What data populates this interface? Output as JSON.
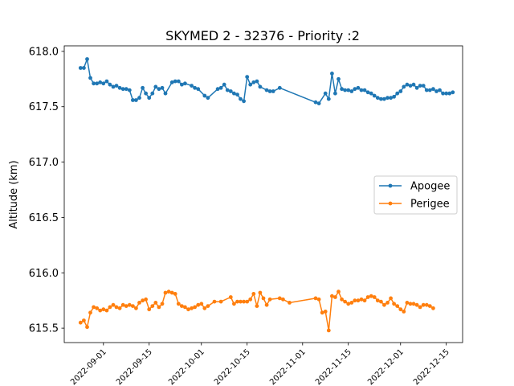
{
  "chart_data": {
    "type": "line",
    "title": "SKYMED 2 - 32376 - Priority :2",
    "xlabel": "",
    "ylabel": "Altitude (km)",
    "xlim": [
      "2022-08-20",
      "2022-12-20"
    ],
    "ylim": [
      615.37,
      618.05
    ],
    "yticks": [
      615.5,
      616.0,
      616.5,
      617.0,
      617.5,
      618.0
    ],
    "ytick_labels": [
      "615.5",
      "616.0",
      "616.5",
      "617.0",
      "617.5",
      "618.0"
    ],
    "xticks": [
      "2022-09-01",
      "2022-09-15",
      "2022-10-01",
      "2022-10-15",
      "2022-11-01",
      "2022-11-15",
      "2022-12-01",
      "2022-12-15"
    ],
    "xtick_labels": [
      "2022-09-01",
      "2022-09-15",
      "2022-10-01",
      "2022-10-15",
      "2022-11-01",
      "2022-11-15",
      "2022-12-01",
      "2022-12-15"
    ],
    "legend": {
      "placement": "center-right"
    },
    "grid": false,
    "series": [
      {
        "name": "Apogee",
        "color": "#1f77b4",
        "points": [
          [
            "2022-08-25",
            617.85
          ],
          [
            "2022-08-26",
            617.85
          ],
          [
            "2022-08-27",
            617.93
          ],
          [
            "2022-08-28",
            617.76
          ],
          [
            "2022-08-29",
            617.71
          ],
          [
            "2022-08-30",
            617.71
          ],
          [
            "2022-08-31",
            617.72
          ],
          [
            "2022-09-01",
            617.71
          ],
          [
            "2022-09-02",
            617.73
          ],
          [
            "2022-09-03",
            617.7
          ],
          [
            "2022-09-04",
            617.68
          ],
          [
            "2022-09-05",
            617.69
          ],
          [
            "2022-09-06",
            617.67
          ],
          [
            "2022-09-07",
            617.66
          ],
          [
            "2022-09-08",
            617.66
          ],
          [
            "2022-09-09",
            617.65
          ],
          [
            "2022-09-10",
            617.56
          ],
          [
            "2022-09-11",
            617.56
          ],
          [
            "2022-09-12",
            617.58
          ],
          [
            "2022-09-13",
            617.67
          ],
          [
            "2022-09-14",
            617.62
          ],
          [
            "2022-09-15",
            617.58
          ],
          [
            "2022-09-16",
            617.62
          ],
          [
            "2022-09-17",
            617.68
          ],
          [
            "2022-09-18",
            617.66
          ],
          [
            "2022-09-19",
            617.67
          ],
          [
            "2022-09-20",
            617.62
          ],
          [
            "2022-09-22",
            617.72
          ],
          [
            "2022-09-23",
            617.73
          ],
          [
            "2022-09-24",
            617.73
          ],
          [
            "2022-09-25",
            617.7
          ],
          [
            "2022-09-26",
            617.71
          ],
          [
            "2022-09-28",
            617.69
          ],
          [
            "2022-09-29",
            617.67
          ],
          [
            "2022-09-30",
            617.66
          ],
          [
            "2022-10-02",
            617.6
          ],
          [
            "2022-10-03",
            617.58
          ],
          [
            "2022-10-06",
            617.66
          ],
          [
            "2022-10-07",
            617.67
          ],
          [
            "2022-10-08",
            617.7
          ],
          [
            "2022-10-09",
            617.65
          ],
          [
            "2022-10-10",
            617.64
          ],
          [
            "2022-10-11",
            617.62
          ],
          [
            "2022-10-12",
            617.61
          ],
          [
            "2022-10-13",
            617.57
          ],
          [
            "2022-10-14",
            617.55
          ],
          [
            "2022-10-15",
            617.77
          ],
          [
            "2022-10-16",
            617.7
          ],
          [
            "2022-10-17",
            617.72
          ],
          [
            "2022-10-18",
            617.73
          ],
          [
            "2022-10-19",
            617.68
          ],
          [
            "2022-10-21",
            617.65
          ],
          [
            "2022-10-22",
            617.64
          ],
          [
            "2022-10-23",
            617.64
          ],
          [
            "2022-10-25",
            617.67
          ],
          [
            "2022-11-05",
            617.54
          ],
          [
            "2022-11-06",
            617.53
          ],
          [
            "2022-11-08",
            617.62
          ],
          [
            "2022-11-09",
            617.57
          ],
          [
            "2022-11-10",
            617.8
          ],
          [
            "2022-11-11",
            617.62
          ],
          [
            "2022-11-12",
            617.75
          ],
          [
            "2022-11-13",
            617.66
          ],
          [
            "2022-11-14",
            617.65
          ],
          [
            "2022-11-15",
            617.65
          ],
          [
            "2022-11-16",
            617.64
          ],
          [
            "2022-11-17",
            617.66
          ],
          [
            "2022-11-18",
            617.67
          ],
          [
            "2022-11-19",
            617.65
          ],
          [
            "2022-11-20",
            617.65
          ],
          [
            "2022-11-21",
            617.63
          ],
          [
            "2022-11-22",
            617.62
          ],
          [
            "2022-11-23",
            617.6
          ],
          [
            "2022-11-24",
            617.58
          ],
          [
            "2022-11-25",
            617.57
          ],
          [
            "2022-11-26",
            617.57
          ],
          [
            "2022-11-27",
            617.58
          ],
          [
            "2022-11-28",
            617.58
          ],
          [
            "2022-11-29",
            617.59
          ],
          [
            "2022-11-30",
            617.62
          ],
          [
            "2022-12-01",
            617.64
          ],
          [
            "2022-12-02",
            617.68
          ],
          [
            "2022-12-03",
            617.7
          ],
          [
            "2022-12-04",
            617.69
          ],
          [
            "2022-12-05",
            617.7
          ],
          [
            "2022-12-06",
            617.67
          ],
          [
            "2022-12-07",
            617.69
          ],
          [
            "2022-12-08",
            617.69
          ],
          [
            "2022-12-09",
            617.65
          ],
          [
            "2022-12-10",
            617.65
          ],
          [
            "2022-12-11",
            617.66
          ],
          [
            "2022-12-12",
            617.64
          ],
          [
            "2022-12-13",
            617.65
          ],
          [
            "2022-12-14",
            617.62
          ],
          [
            "2022-12-15",
            617.62
          ],
          [
            "2022-12-16",
            617.62
          ],
          [
            "2022-12-17",
            617.63
          ]
        ]
      },
      {
        "name": "Perigee",
        "color": "#ff7f0e",
        "points": [
          [
            "2022-08-25",
            615.55
          ],
          [
            "2022-08-26",
            615.57
          ],
          [
            "2022-08-27",
            615.51
          ],
          [
            "2022-08-28",
            615.64
          ],
          [
            "2022-08-29",
            615.69
          ],
          [
            "2022-08-30",
            615.68
          ],
          [
            "2022-08-31",
            615.66
          ],
          [
            "2022-09-01",
            615.67
          ],
          [
            "2022-09-02",
            615.66
          ],
          [
            "2022-09-03",
            615.69
          ],
          [
            "2022-09-04",
            615.71
          ],
          [
            "2022-09-05",
            615.69
          ],
          [
            "2022-09-06",
            615.68
          ],
          [
            "2022-09-07",
            615.71
          ],
          [
            "2022-09-08",
            615.7
          ],
          [
            "2022-09-09",
            615.71
          ],
          [
            "2022-09-10",
            615.7
          ],
          [
            "2022-09-11",
            615.68
          ],
          [
            "2022-09-12",
            615.73
          ],
          [
            "2022-09-13",
            615.75
          ],
          [
            "2022-09-14",
            615.76
          ],
          [
            "2022-09-15",
            615.67
          ],
          [
            "2022-09-16",
            615.7
          ],
          [
            "2022-09-17",
            615.73
          ],
          [
            "2022-09-18",
            615.69
          ],
          [
            "2022-09-19",
            615.72
          ],
          [
            "2022-09-20",
            615.82
          ],
          [
            "2022-09-21",
            615.83
          ],
          [
            "2022-09-22",
            615.82
          ],
          [
            "2022-09-23",
            615.81
          ],
          [
            "2022-09-24",
            615.72
          ],
          [
            "2022-09-25",
            615.7
          ],
          [
            "2022-09-26",
            615.69
          ],
          [
            "2022-09-27",
            615.67
          ],
          [
            "2022-09-28",
            615.68
          ],
          [
            "2022-09-29",
            615.69
          ],
          [
            "2022-09-30",
            615.71
          ],
          [
            "2022-10-01",
            615.72
          ],
          [
            "2022-10-02",
            615.68
          ],
          [
            "2022-10-03",
            615.7
          ],
          [
            "2022-10-05",
            615.74
          ],
          [
            "2022-10-07",
            615.74
          ],
          [
            "2022-10-10",
            615.78
          ],
          [
            "2022-10-11",
            615.72
          ],
          [
            "2022-10-12",
            615.74
          ],
          [
            "2022-10-13",
            615.74
          ],
          [
            "2022-10-14",
            615.74
          ],
          [
            "2022-10-15",
            615.74
          ],
          [
            "2022-10-16",
            615.76
          ],
          [
            "2022-10-17",
            615.81
          ],
          [
            "2022-10-18",
            615.7
          ],
          [
            "2022-10-19",
            615.82
          ],
          [
            "2022-10-20",
            615.77
          ],
          [
            "2022-10-21",
            615.71
          ],
          [
            "2022-10-22",
            615.76
          ],
          [
            "2022-10-25",
            615.77
          ],
          [
            "2022-10-26",
            615.76
          ],
          [
            "2022-10-28",
            615.73
          ],
          [
            "2022-11-05",
            615.77
          ],
          [
            "2022-11-06",
            615.76
          ],
          [
            "2022-11-07",
            615.64
          ],
          [
            "2022-11-08",
            615.65
          ],
          [
            "2022-11-09",
            615.48
          ],
          [
            "2022-11-10",
            615.79
          ],
          [
            "2022-11-11",
            615.78
          ],
          [
            "2022-11-12",
            615.83
          ],
          [
            "2022-11-13",
            615.76
          ],
          [
            "2022-11-14",
            615.74
          ],
          [
            "2022-11-15",
            615.72
          ],
          [
            "2022-11-16",
            615.73
          ],
          [
            "2022-11-17",
            615.75
          ],
          [
            "2022-11-18",
            615.75
          ],
          [
            "2022-11-19",
            615.76
          ],
          [
            "2022-11-20",
            615.75
          ],
          [
            "2022-11-21",
            615.78
          ],
          [
            "2022-11-22",
            615.79
          ],
          [
            "2022-11-23",
            615.78
          ],
          [
            "2022-11-24",
            615.75
          ],
          [
            "2022-11-25",
            615.74
          ],
          [
            "2022-11-26",
            615.71
          ],
          [
            "2022-11-27",
            615.73
          ],
          [
            "2022-11-28",
            615.77
          ],
          [
            "2022-11-29",
            615.72
          ],
          [
            "2022-11-30",
            615.7
          ],
          [
            "2022-12-01",
            615.67
          ],
          [
            "2022-12-02",
            615.65
          ],
          [
            "2022-12-03",
            615.73
          ],
          [
            "2022-12-04",
            615.72
          ],
          [
            "2022-12-05",
            615.72
          ],
          [
            "2022-12-06",
            615.71
          ],
          [
            "2022-12-07",
            615.69
          ],
          [
            "2022-12-08",
            615.71
          ],
          [
            "2022-12-09",
            615.71
          ],
          [
            "2022-12-10",
            615.7
          ],
          [
            "2022-12-11",
            615.68
          ]
        ]
      }
    ]
  }
}
